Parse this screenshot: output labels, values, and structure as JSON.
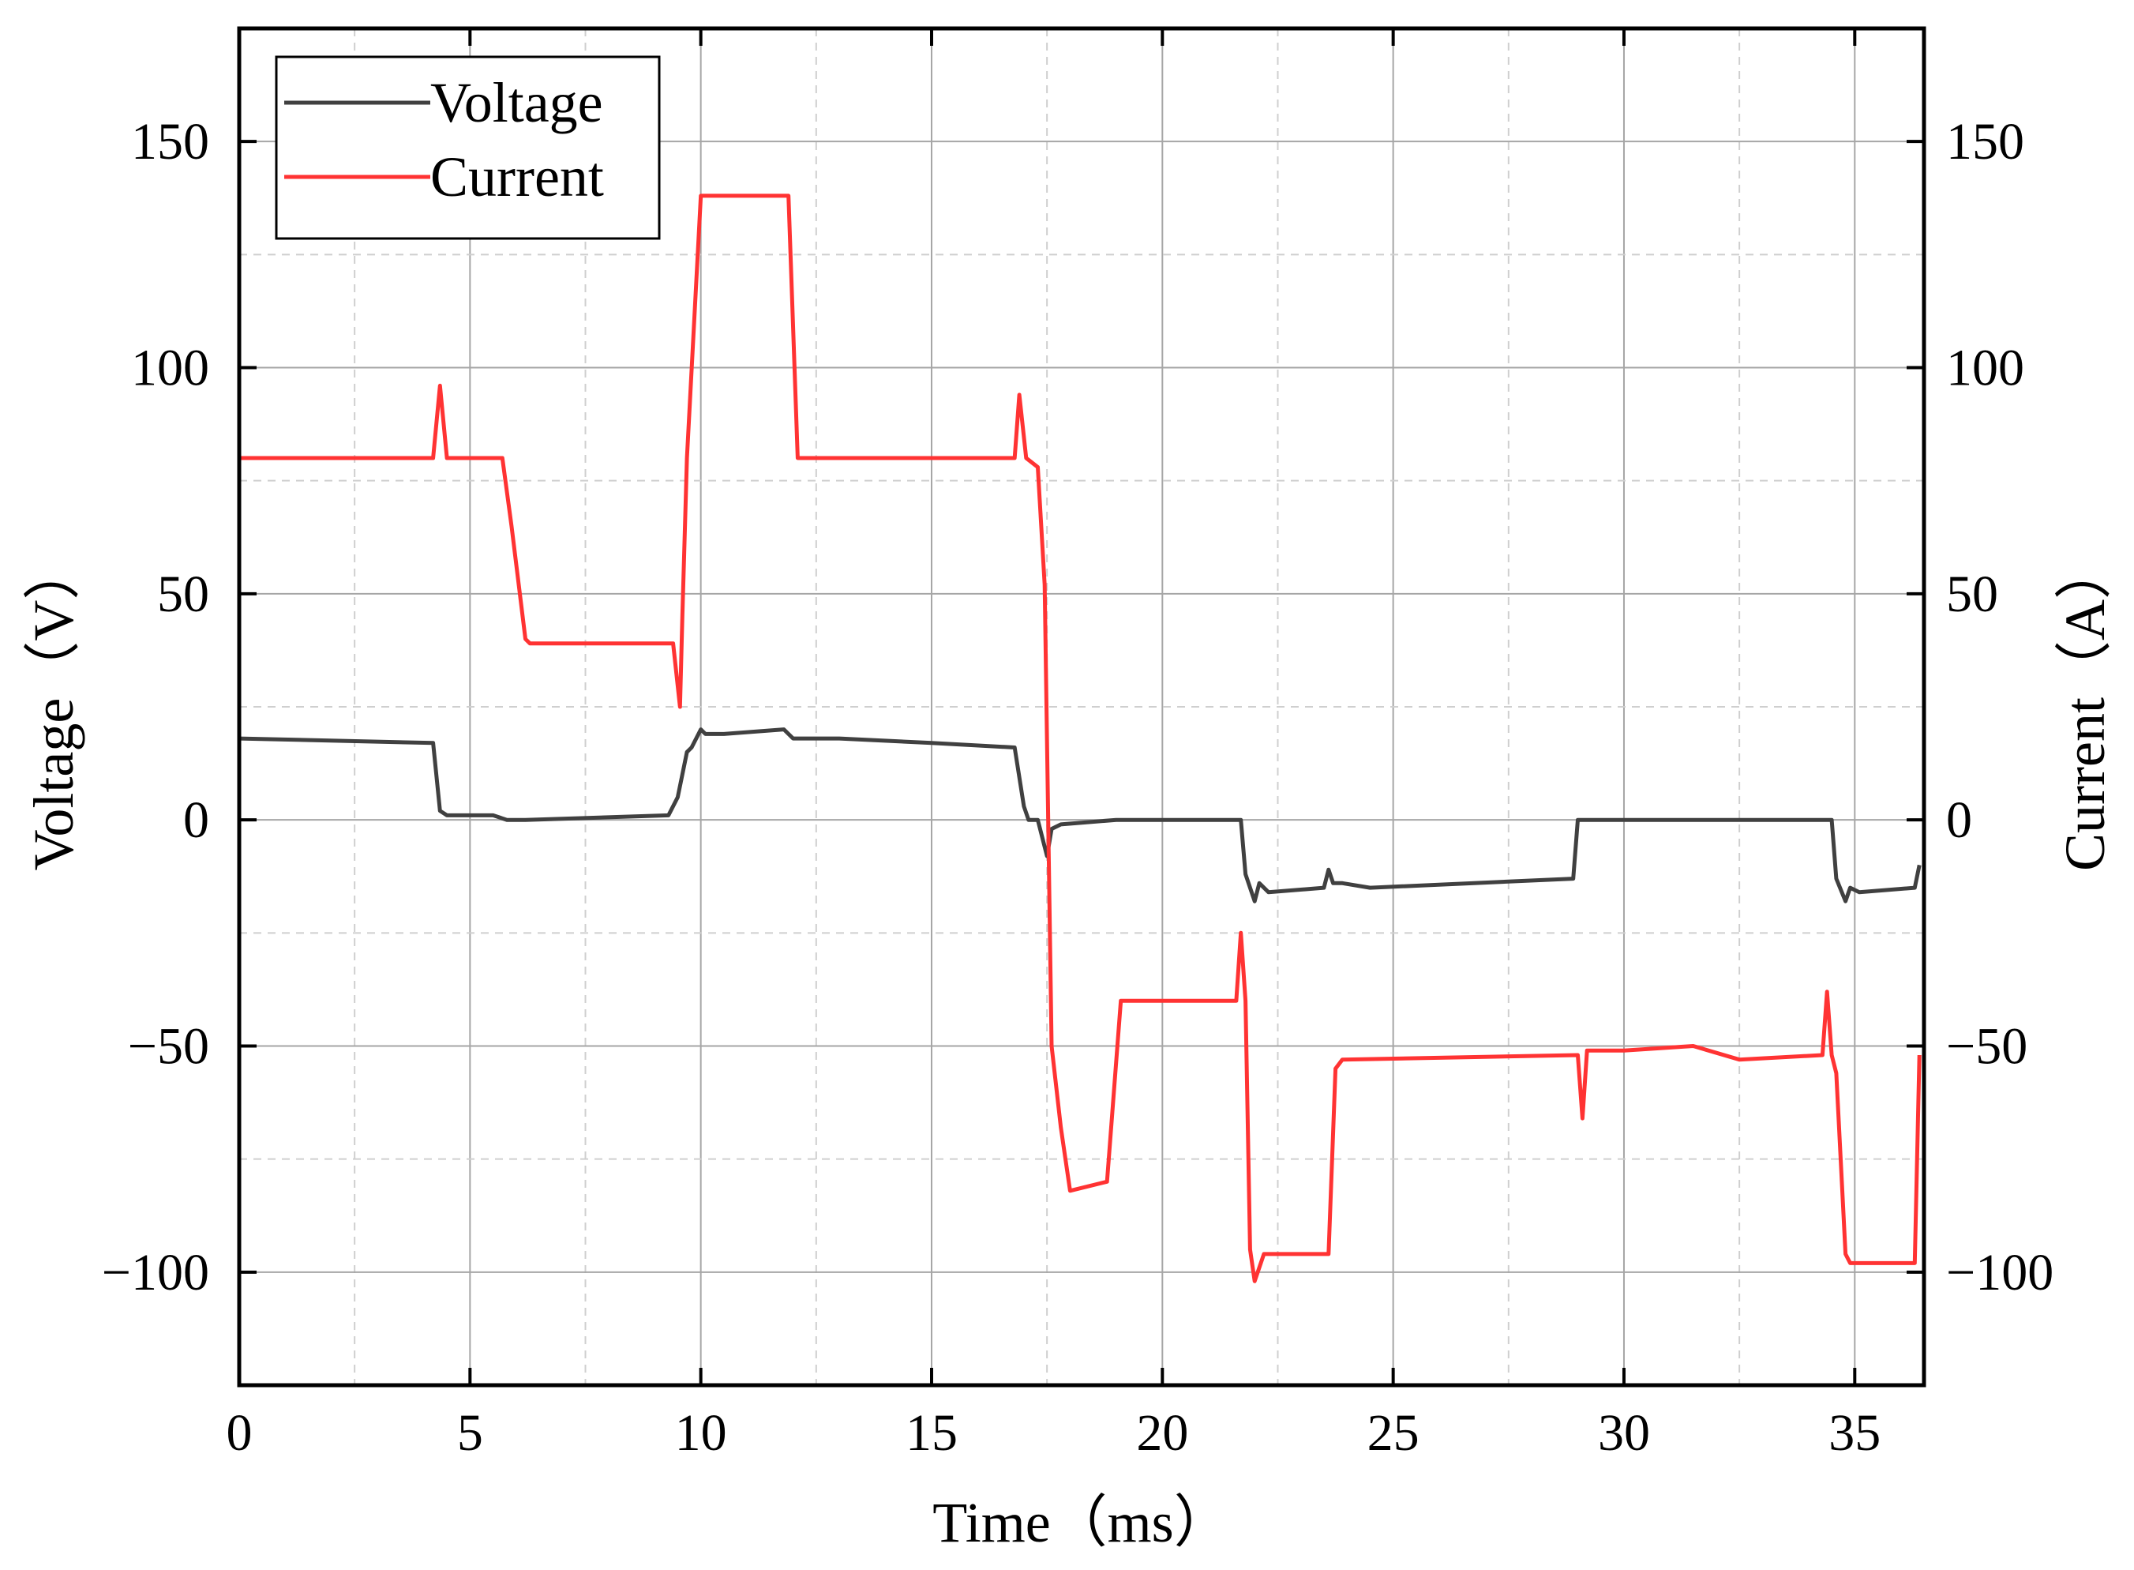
{
  "chart_data": {
    "type": "line",
    "xlabel": "Time（ms）",
    "ylabel_left": "Voltage（V）",
    "ylabel_right": "Current（A）",
    "xlim": [
      0,
      36.5
    ],
    "ylim": [
      -125,
      175
    ],
    "xticks": [
      "0",
      "5",
      "10",
      "15",
      "20",
      "25",
      "30",
      "35"
    ],
    "yticks_left": [
      "150",
      "100",
      "50",
      "0",
      "−50",
      "−100"
    ],
    "yticks_right": [
      "150",
      "100",
      "50",
      "0",
      "−50",
      "−100"
    ],
    "grid": true,
    "legend_position": "top-left",
    "series": [
      {
        "name": "Voltage",
        "axis": "left",
        "color": "#404040",
        "x": [
          0,
          4.2,
          4.35,
          4.5,
          5.5,
          5.8,
          6.2,
          9.3,
          9.5,
          9.7,
          9.8,
          10.0,
          10.1,
          10.5,
          11.8,
          12.0,
          13.0,
          15.0,
          16.8,
          17.0,
          17.1,
          17.3,
          17.5,
          17.6,
          17.8,
          19.0,
          21.7,
          21.8,
          22.0,
          22.1,
          22.3,
          23.5,
          23.6,
          23.7,
          23.9,
          24.5,
          28.9,
          29.0,
          29.1,
          30.0,
          34.5,
          34.6,
          34.8,
          34.9,
          35.1,
          36.3,
          36.4
        ],
        "y": [
          18,
          17,
          2,
          1,
          1,
          0,
          0,
          1,
          5,
          15,
          16,
          20,
          19,
          19,
          20,
          18,
          18,
          17,
          16,
          3,
          0,
          0,
          -8,
          -2,
          -1,
          0,
          0,
          -12,
          -18,
          -14,
          -16,
          -15,
          -11,
          -14,
          -14,
          -15,
          -13,
          0,
          0,
          0,
          0,
          -13,
          -18,
          -15,
          -16,
          -15,
          -10
        ]
      },
      {
        "name": "Current",
        "axis": "right",
        "color": "#ff3333",
        "x": [
          0,
          4.2,
          4.35,
          4.5,
          5.7,
          5.9,
          6.2,
          6.3,
          9.4,
          9.55,
          9.6,
          9.7,
          10.0,
          10.2,
          11.9,
          12.1,
          12.4,
          12.6,
          16.8,
          16.9,
          17.05,
          17.3,
          17.45,
          17.6,
          17.8,
          18.0,
          18.8,
          19.1,
          19.3,
          21.6,
          21.7,
          21.8,
          21.9,
          22.0,
          22.2,
          23.6,
          23.75,
          23.9,
          29.0,
          29.1,
          29.2,
          30.0,
          31.5,
          32.5,
          34.3,
          34.4,
          34.5,
          34.6,
          34.8,
          34.9,
          36.3,
          36.4
        ],
        "y": [
          80,
          80,
          96,
          80,
          80,
          65,
          40,
          39,
          39,
          25,
          45,
          80,
          138,
          138,
          138,
          80,
          80,
          80,
          80,
          94,
          80,
          78,
          52,
          -50,
          -68,
          -82,
          -80,
          -40,
          -40,
          -40,
          -25,
          -40,
          -95,
          -102,
          -96,
          -96,
          -55,
          -53,
          -52,
          -66,
          -51,
          -51,
          -50,
          -53,
          -52,
          -38,
          -52,
          -56,
          -96,
          -98,
          -98,
          -52
        ]
      }
    ]
  }
}
